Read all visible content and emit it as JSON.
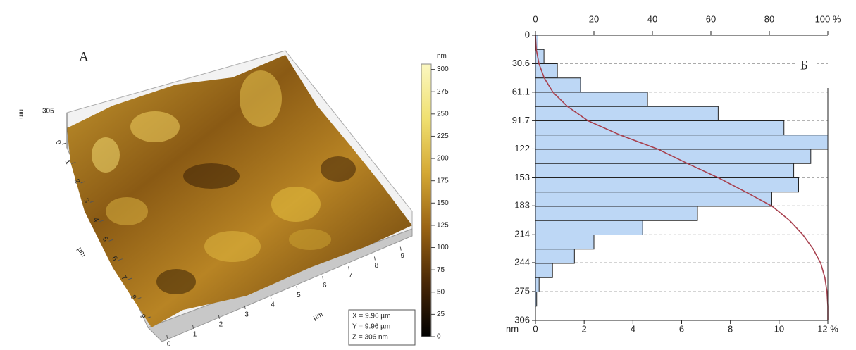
{
  "chart_data": [
    {
      "type": "surface",
      "annotation": "A",
      "z_axis_label": "nm",
      "z_axis_tick": 305,
      "x_axis_label": "µm",
      "y_axis_label": "µm",
      "x_ticks": [
        0,
        1,
        2,
        3,
        4,
        5,
        6,
        7,
        8,
        9
      ],
      "y_ticks": [
        0,
        1,
        2,
        3,
        4,
        5,
        6,
        7,
        8,
        9
      ],
      "colorbar": {
        "label": "nm",
        "lim": [
          0,
          306
        ],
        "ticks": [
          0,
          25,
          50,
          75,
          100,
          125,
          150,
          175,
          200,
          225,
          250,
          275,
          300
        ],
        "colors": [
          "#000000",
          "#4a2806",
          "#9a6414",
          "#d4a834",
          "#f0e070",
          "#fbf7c0"
        ]
      },
      "info": [
        "X = 9.96 µm",
        "Y = 9.96 µm",
        "Z = 306 nm"
      ]
    },
    {
      "type": "histogram",
      "annotation": "Б",
      "y_axis_label": "nm",
      "bins": [
        0,
        15.3,
        30.6,
        45.9,
        61.2,
        76.5,
        91.8,
        107.1,
        122.4,
        137.7,
        153,
        168.3,
        183.6,
        198.9,
        214.2,
        229.5,
        244.8,
        260.1,
        275.4,
        290.7,
        306
      ],
      "values": [
        0.1,
        0.35,
        0.9,
        1.85,
        4.6,
        7.5,
        10.2,
        12,
        11.3,
        10.6,
        10.8,
        9.7,
        6.65,
        4.4,
        2.4,
        1.6,
        0.7,
        0.15,
        0.05,
        0
      ],
      "color": "#bdd7f5",
      "ylim": [
        0,
        306
      ],
      "yticks": [
        0,
        30.6,
        61.1,
        91.7,
        122,
        153,
        183,
        214,
        244,
        275,
        306
      ],
      "xlim": [
        0,
        12
      ],
      "xticks": [
        0,
        2,
        4,
        6,
        8,
        10,
        {
          "value": 12,
          "label": "12 %"
        }
      ],
      "x2lim": [
        0,
        100
      ],
      "x2ticks": [
        0,
        20,
        40,
        60,
        80,
        {
          "value": 100,
          "label": "100 %"
        }
      ],
      "cumulative": {
        "color": "#a8404e",
        "values": [
          0,
          0.3,
          1.2,
          3,
          6,
          11,
          18,
          29,
          42,
          52,
          62.6,
          72,
          81,
          87,
          91.5,
          95,
          97.6,
          99,
          99.7,
          100,
          100
        ]
      },
      "grid": true
    }
  ]
}
